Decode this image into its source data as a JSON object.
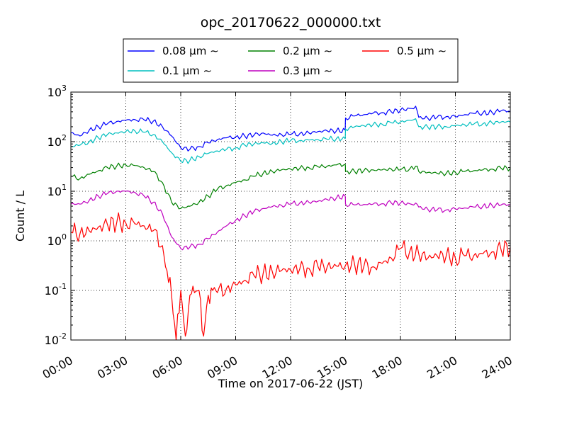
{
  "chart_data": {
    "type": "line",
    "title": "opc_20170622_000000.txt",
    "xlabel": "Time on 2017-06-22 (JST)",
    "ylabel": "Count / L",
    "y_scale": "log",
    "ylim": [
      0.01,
      1000
    ],
    "xlim": [
      "00:00",
      "24:00"
    ],
    "x_ticks": [
      "00:00",
      "03:00",
      "06:00",
      "09:00",
      "12:00",
      "15:00",
      "18:00",
      "21:00",
      "24:00"
    ],
    "y_ticks": [
      {
        "base": "10",
        "exp": "-2",
        "value": 0.01
      },
      {
        "base": "10",
        "exp": "-1",
        "value": 0.1
      },
      {
        "base": "10",
        "exp": "0",
        "value": 1
      },
      {
        "base": "10",
        "exp": "1",
        "value": 10
      },
      {
        "base": "10",
        "exp": "2",
        "value": 100
      },
      {
        "base": "10",
        "exp": "3",
        "value": 1000
      }
    ],
    "grid": true,
    "legend_position": "top",
    "series": [
      {
        "name": "0.08 μm ∼",
        "color": "#0000ff",
        "x": [
          "00:00",
          "00:30",
          "01:00",
          "01:30",
          "02:00",
          "02:30",
          "03:00",
          "03:30",
          "04:00",
          "04:30",
          "05:00",
          "05:30",
          "06:00",
          "06:30",
          "07:00",
          "07:30",
          "08:00",
          "08:30",
          "09:00",
          "09:30",
          "10:00",
          "10:30",
          "11:00",
          "11:30",
          "12:00",
          "12:30",
          "13:00",
          "13:30",
          "14:00",
          "14:30",
          "14:59",
          "15:00",
          "15:30",
          "16:00",
          "16:30",
          "17:00",
          "17:30",
          "18:00",
          "18:30",
          "18:50",
          "19:00",
          "19:30",
          "20:00",
          "20:30",
          "21:00",
          "21:30",
          "22:00",
          "22:30",
          "23:00",
          "23:30",
          "24:00"
        ],
        "values": [
          150,
          130,
          170,
          200,
          230,
          255,
          270,
          280,
          275,
          260,
          200,
          130,
          75,
          70,
          80,
          95,
          110,
          120,
          125,
          130,
          135,
          150,
          135,
          140,
          140,
          145,
          150,
          160,
          165,
          165,
          170,
          300,
          330,
          350,
          375,
          385,
          400,
          430,
          470,
          520,
          310,
          295,
          310,
          320,
          320,
          350,
          370,
          380,
          390,
          420,
          410
        ]
      },
      {
        "name": "0.1 μm ∼",
        "color": "#00bfbf",
        "x": [
          "00:00",
          "00:30",
          "01:00",
          "01:30",
          "02:00",
          "02:30",
          "03:00",
          "03:30",
          "04:00",
          "04:30",
          "05:00",
          "05:30",
          "06:00",
          "06:30",
          "07:00",
          "07:30",
          "08:00",
          "08:30",
          "09:00",
          "09:30",
          "10:00",
          "10:30",
          "11:00",
          "11:30",
          "12:00",
          "12:30",
          "13:00",
          "13:30",
          "14:00",
          "14:30",
          "14:59",
          "15:00",
          "15:30",
          "16:00",
          "16:30",
          "17:00",
          "17:30",
          "18:00",
          "18:30",
          "18:50",
          "19:00",
          "19:30",
          "20:00",
          "20:30",
          "21:00",
          "21:30",
          "22:00",
          "22:30",
          "23:00",
          "23:30",
          "24:00"
        ],
        "values": [
          80,
          85,
          100,
          120,
          140,
          150,
          160,
          165,
          155,
          140,
          100,
          60,
          40,
          42,
          50,
          58,
          65,
          70,
          75,
          85,
          90,
          95,
          92,
          100,
          105,
          105,
          108,
          110,
          112,
          115,
          115,
          180,
          200,
          210,
          220,
          225,
          240,
          250,
          270,
          290,
          200,
          195,
          200,
          200,
          210,
          220,
          225,
          230,
          240,
          250,
          250
        ]
      },
      {
        "name": "0.2 μm ∼",
        "color": "#008000",
        "x": [
          "00:00",
          "00:30",
          "01:00",
          "01:30",
          "02:00",
          "02:30",
          "03:00",
          "03:30",
          "04:00",
          "04:30",
          "05:00",
          "05:30",
          "06:00",
          "06:30",
          "07:00",
          "07:30",
          "08:00",
          "08:30",
          "09:00",
          "09:30",
          "10:00",
          "10:30",
          "11:00",
          "11:30",
          "12:00",
          "12:30",
          "13:00",
          "13:30",
          "14:00",
          "14:30",
          "14:59",
          "15:00",
          "15:30",
          "16:00",
          "16:30",
          "17:00",
          "17:30",
          "18:00",
          "18:30",
          "18:50",
          "19:00",
          "19:30",
          "20:00",
          "20:30",
          "21:00",
          "21:30",
          "22:00",
          "22:30",
          "23:00",
          "23:30",
          "24:00"
        ],
        "values": [
          20,
          18,
          22,
          26,
          30,
          32,
          34,
          33,
          30,
          25,
          15,
          6,
          4.5,
          5,
          6,
          8,
          11,
          13,
          15,
          17,
          20,
          23,
          25,
          27,
          28,
          29,
          30,
          31,
          32,
          34,
          35,
          25,
          25,
          26,
          27,
          27,
          28,
          27,
          28,
          32,
          25,
          24,
          23,
          23,
          24,
          25,
          26,
          27,
          28,
          29,
          29
        ]
      },
      {
        "name": "0.3 μm ∼",
        "color": "#bf00bf",
        "x": [
          "00:00",
          "00:30",
          "01:00",
          "01:30",
          "02:00",
          "02:30",
          "03:00",
          "03:30",
          "04:00",
          "04:30",
          "05:00",
          "05:30",
          "06:00",
          "06:30",
          "07:00",
          "07:30",
          "08:00",
          "08:30",
          "09:00",
          "09:30",
          "10:00",
          "10:30",
          "11:00",
          "11:30",
          "12:00",
          "12:30",
          "13:00",
          "13:30",
          "14:00",
          "14:30",
          "14:59",
          "15:00",
          "15:30",
          "16:00",
          "16:30",
          "17:00",
          "17:30",
          "18:00",
          "18:30",
          "18:50",
          "19:00",
          "19:30",
          "20:00",
          "20:30",
          "21:00",
          "21:30",
          "22:00",
          "22:30",
          "23:00",
          "23:30",
          "24:00"
        ],
        "values": [
          5.5,
          5.5,
          6.5,
          8,
          9,
          10,
          10,
          9.5,
          8,
          6,
          3.5,
          1.2,
          0.7,
          0.75,
          0.85,
          1.1,
          1.5,
          2,
          2.6,
          3.2,
          3.9,
          4.5,
          4.9,
          5.2,
          5.5,
          5.8,
          6,
          6.3,
          6.8,
          7.3,
          8,
          5.5,
          5.3,
          5.4,
          5.5,
          5.6,
          5.8,
          5.8,
          5.6,
          5.8,
          4.8,
          4.3,
          4.2,
          4.2,
          4.4,
          4.6,
          4.8,
          5,
          5.2,
          5.3,
          5.4
        ]
      },
      {
        "name": "0.5 μm ∼",
        "color": "#ff0000",
        "x": [
          "00:00",
          "00:30",
          "01:00",
          "01:30",
          "02:00",
          "02:30",
          "03:00",
          "03:30",
          "04:00",
          "04:30",
          "05:00",
          "05:15",
          "05:30",
          "05:45",
          "06:00",
          "06:15",
          "06:30",
          "06:45",
          "07:00",
          "07:15",
          "07:30",
          "07:45",
          "08:00",
          "08:30",
          "09:00",
          "09:30",
          "10:00",
          "10:30",
          "11:00",
          "11:30",
          "12:00",
          "12:30",
          "13:00",
          "13:30",
          "14:00",
          "14:30",
          "15:00",
          "15:30",
          "16:00",
          "16:30",
          "17:00",
          "17:30",
          "18:00",
          "18:30",
          "19:00",
          "19:30",
          "20:00",
          "20:30",
          "21:00",
          "21:30",
          "22:00",
          "22:30",
          "23:00",
          "23:30",
          "24:00"
        ],
        "values": [
          1.5,
          1.4,
          1.6,
          1.9,
          2.1,
          2.3,
          2.3,
          2.2,
          2,
          1.6,
          0.8,
          0.25,
          0.08,
          0.01,
          0.1,
          0.012,
          0.08,
          0.09,
          0.1,
          0.012,
          0.08,
          0.1,
          0.09,
          0.11,
          0.13,
          0.16,
          0.2,
          0.22,
          0.24,
          0.25,
          0.26,
          0.27,
          0.28,
          0.3,
          0.3,
          0.31,
          0.32,
          0.33,
          0.3,
          0.3,
          0.35,
          0.45,
          0.7,
          0.6,
          0.55,
          0.45,
          0.5,
          0.5,
          0.45,
          0.5,
          0.5,
          0.55,
          0.6,
          0.65,
          0.75
        ]
      }
    ]
  }
}
